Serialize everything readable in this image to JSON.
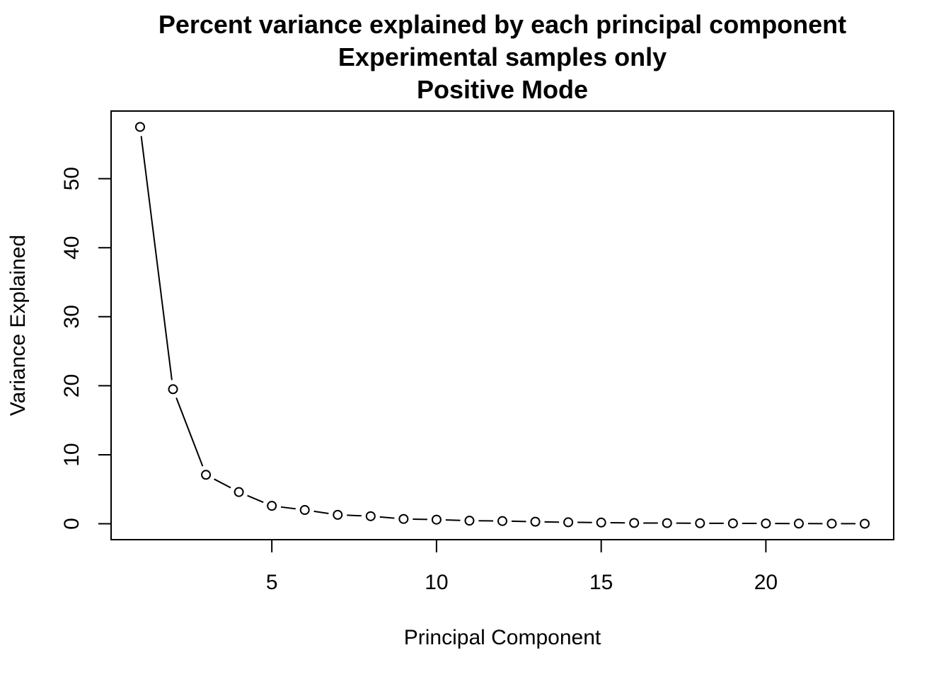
{
  "chart_data": {
    "type": "line",
    "title": "Percent variance explained by each principal component",
    "subtitle_lines": [
      "Experimental samples only",
      "Positive Mode"
    ],
    "xlabel": "Principal Component",
    "ylabel": "Variance Explained",
    "x": [
      1,
      2,
      3,
      4,
      5,
      6,
      7,
      8,
      9,
      10,
      11,
      12,
      13,
      14,
      15,
      16,
      17,
      18,
      19,
      20,
      21,
      22,
      23
    ],
    "series": [
      {
        "values": [
          57.5,
          19.5,
          7.1,
          4.6,
          2.6,
          2.0,
          1.3,
          1.1,
          0.7,
          0.6,
          0.45,
          0.4,
          0.3,
          0.22,
          0.18,
          0.12,
          0.1,
          0.08,
          0.06,
          0.05,
          0.03,
          0.02,
          0.01
        ]
      }
    ],
    "xlim": [
      0.12,
      23.88
    ],
    "ylim": [
      -2.3,
      59.8
    ],
    "xticks": [
      5,
      10,
      15,
      20
    ],
    "yticks": [
      0,
      10,
      20,
      30,
      40,
      50
    ],
    "grid": false,
    "style": "points-and-lines",
    "colors": {
      "line": "#000000",
      "point": "#000000",
      "background": "#ffffff"
    }
  }
}
